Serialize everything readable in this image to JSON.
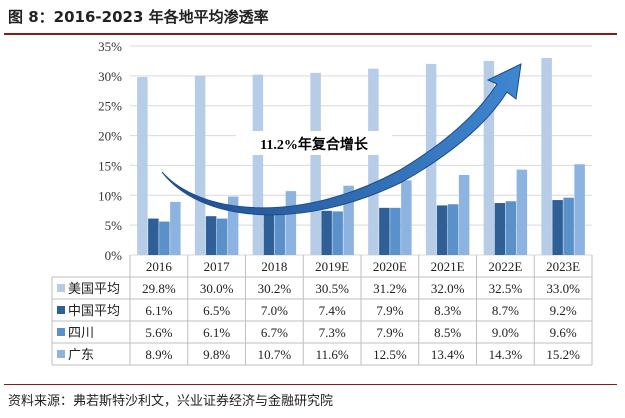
{
  "figure": {
    "title": "图 8：2016-2023 年各地平均渗透率",
    "source": "资料来源：弗若斯特沙利文，兴业证券经济与金融研究院"
  },
  "chart_data": {
    "type": "bar",
    "categories": [
      "2016",
      "2017",
      "2018",
      "2019E",
      "2020E",
      "2021E",
      "2022E",
      "2023E"
    ],
    "series": [
      {
        "name": "美国平均",
        "color": "#b7cce6",
        "values": [
          29.8,
          30.0,
          30.2,
          30.5,
          31.2,
          32.0,
          32.5,
          33.0
        ],
        "labels": [
          "29.8%",
          "30.0%",
          "30.2%",
          "30.5%",
          "31.2%",
          "32.0%",
          "32.5%",
          "33.0%"
        ]
      },
      {
        "name": "中国平均",
        "color": "#2f5f97",
        "values": [
          6.1,
          6.5,
          7.0,
          7.4,
          7.9,
          8.3,
          8.7,
          9.2
        ],
        "labels": [
          "6.1%",
          "6.5%",
          "7.0%",
          "7.4%",
          "7.9%",
          "8.3%",
          "8.7%",
          "9.2%"
        ]
      },
      {
        "name": "四川",
        "color": "#5b91c9",
        "values": [
          5.6,
          6.1,
          6.7,
          7.3,
          7.9,
          8.5,
          9.0,
          9.6
        ],
        "labels": [
          "5.6%",
          "6.1%",
          "6.7%",
          "7.3%",
          "7.9%",
          "8.5%",
          "9.0%",
          "9.6%"
        ]
      },
      {
        "name": "广东",
        "color": "#8db4e0",
        "values": [
          8.9,
          9.8,
          10.7,
          11.6,
          12.5,
          13.4,
          14.3,
          15.2
        ],
        "labels": [
          "8.9%",
          "9.8%",
          "10.7%",
          "11.6%",
          "12.5%",
          "13.4%",
          "14.3%",
          "15.2%"
        ]
      }
    ],
    "ylim": [
      0,
      35
    ],
    "yticks": [
      0,
      5,
      10,
      15,
      20,
      25,
      30,
      35
    ],
    "ytick_labels": [
      "0%",
      "5%",
      "10%",
      "15%",
      "20%",
      "25%",
      "30%",
      "35%"
    ],
    "gridlines": true,
    "legend": "data-table",
    "annotation": "11.2%年复合增长",
    "arrow_color": "#2c64b0"
  }
}
